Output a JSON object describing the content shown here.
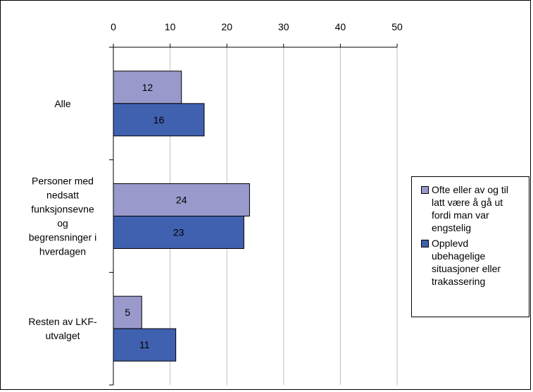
{
  "chart_data": {
    "type": "bar",
    "orientation": "horizontal",
    "categories": [
      "Alle",
      "Personer med nedsatt funksjonsevne og begrensninger i hverdagen",
      "Resten av LKF-utvalget"
    ],
    "category_lines": [
      [
        "Alle"
      ],
      [
        "Personer med",
        "nedsatt",
        "funksjonsevne",
        "og",
        "begrensninger i",
        "hverdagen"
      ],
      [
        "Resten av LKF-",
        "utvalget"
      ]
    ],
    "series": [
      {
        "name": "Ofte eller av og til latt være å gå ut fordi man var engstelig",
        "name_lines": [
          "Ofte eller av og til",
          "latt være å gå ut",
          "fordi man var",
          "engstelig"
        ],
        "color": "#9999cc",
        "values": [
          12,
          24,
          5
        ]
      },
      {
        "name": "Opplevd ubehagelige situasjoner eller trakassering",
        "name_lines": [
          "Opplevd",
          "ubehagelige",
          "situasjoner eller",
          "trakassering"
        ],
        "color": "#4060b0",
        "values": [
          16,
          23,
          11
        ]
      }
    ],
    "xlim": [
      0,
      50
    ],
    "xticks": [
      "0",
      "10",
      "20",
      "30",
      "40",
      "50"
    ],
    "xaxis_position": "top",
    "grid": true,
    "data_labels": true,
    "legend": "right"
  }
}
